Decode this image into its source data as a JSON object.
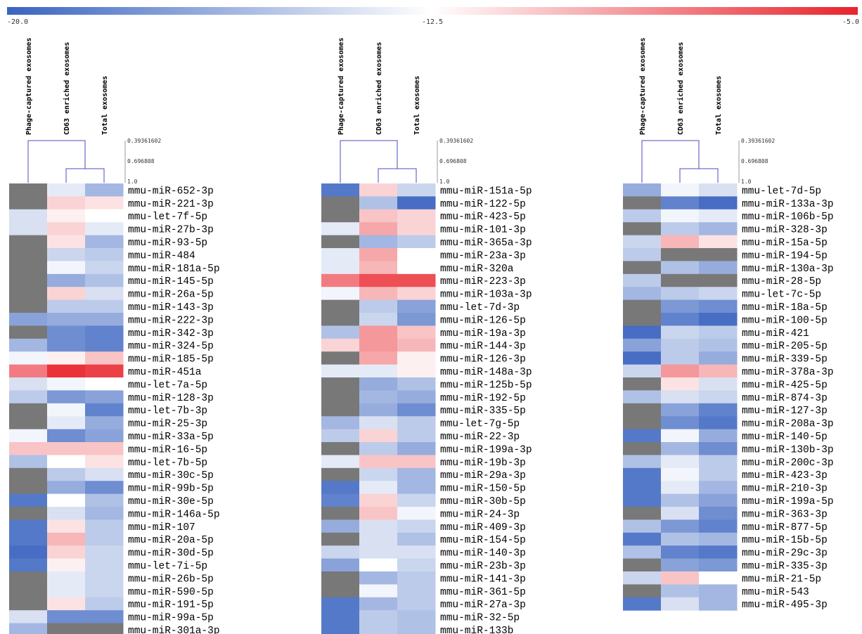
{
  "chart_data": {
    "type": "heatmap",
    "colorbar": {
      "min_label": "-20.0",
      "mid_label": "-12.5",
      "max_label": "-5.0",
      "min": -20.0,
      "mid": -12.5,
      "max": -5.0,
      "low_color": "#3a64c0",
      "mid_color": "#ffffff",
      "high_color": "#e8232b"
    },
    "missing_color": "#787878",
    "columns": [
      "Phage-captured exosomes",
      "CD63 enriched exosomes",
      "Total exosomes"
    ],
    "dendrogram_scale": [
      "0.39361602",
      "0.696808",
      "1.0"
    ],
    "panels": [
      {
        "rows": [
          "mmu-miR-652-3p",
          "mmu-miR-221-3p",
          "mmu-let-7f-5p",
          "mmu-miR-27b-3p",
          "mmu-miR-93-5p",
          "mmu-miR-484",
          "mmu-miR-181a-5p",
          "mmu-miR-145-5p",
          "mmu-miR-26a-5p",
          "mmu-miR-143-3p",
          "mmu-miR-222-3p",
          "mmu-miR-342-3p",
          "mmu-miR-324-5p",
          "mmu-miR-185-5p",
          "mmu-miR-451a",
          "mmu-let-7a-5p",
          "mmu-miR-128-3p",
          "mmu-let-7b-3p",
          "mmu-miR-25-3p",
          "mmu-miR-33a-5p",
          "mmu-miR-16-5p",
          "mmu-let-7b-5p",
          "mmu-miR-30c-5p",
          "mmu-miR-99b-5p",
          "mmu-miR-30e-5p",
          "mmu-miR-146a-5p",
          "mmu-miR-107",
          "mmu-miR-20a-5p",
          "mmu-miR-30d-5p",
          "mmu-let-7i-5p",
          "mmu-miR-26b-5p",
          "mmu-miR-590-5p",
          "mmu-miR-191-5p",
          "mmu-miR-99a-5p",
          "mmu-miR-301a-3p"
        ],
        "values": [
          [
            null,
            -13.5,
            -16.0
          ],
          [
            null,
            -11.0,
            -11.5
          ],
          [
            -14.0,
            -12.0,
            -12.5
          ],
          [
            -14.0,
            -11.0,
            -13.5
          ],
          [
            null,
            -11.5,
            -16.0
          ],
          [
            null,
            -14.5,
            -15.0
          ],
          [
            null,
            -13.0,
            -14.5
          ],
          [
            null,
            -16.5,
            -15.5
          ],
          [
            null,
            -11.0,
            -14.0
          ],
          [
            null,
            -15.0,
            -15.0
          ],
          [
            -17.0,
            -16.5,
            -16.5
          ],
          [
            null,
            -18.0,
            -18.5
          ],
          [
            -16.0,
            -18.0,
            -18.5
          ],
          [
            -13.0,
            -12.0,
            -10.5
          ],
          [
            -8.0,
            -5.5,
            -6.0
          ],
          [
            -14.0,
            -13.0,
            -12.5
          ],
          [
            -15.0,
            -17.5,
            -17.0
          ],
          [
            null,
            -13.0,
            -18.5
          ],
          [
            null,
            -13.5,
            -16.5
          ],
          [
            -13.0,
            -18.0,
            -17.0
          ],
          [
            -10.5,
            -10.5,
            -10.5
          ],
          [
            -15.5,
            -12.5,
            -11.5
          ],
          [
            null,
            -15.0,
            -14.0
          ],
          [
            null,
            -16.5,
            -18.0
          ],
          [
            -19.0,
            -12.5,
            -15.5
          ],
          [
            null,
            -14.0,
            -16.0
          ],
          [
            -19.0,
            -11.5,
            -15.0
          ],
          [
            -19.0,
            -10.0,
            -15.0
          ],
          [
            -19.5,
            -11.0,
            -14.5
          ],
          [
            -19.0,
            -12.0,
            -14.5
          ],
          [
            null,
            -13.5,
            -14.5
          ],
          [
            null,
            -13.5,
            -14.5
          ],
          [
            null,
            -11.5,
            -15.0
          ],
          [
            -14.0,
            -18.0,
            -18.0
          ],
          [
            -16.0,
            null,
            null
          ]
        ]
      },
      {
        "rows": [
          "mmu-miR-151a-5p",
          "mmu-miR-122-5p",
          "mmu-miR-423-5p",
          "mmu-miR-101-3p",
          "mmu-miR-365a-3p",
          "mmu-miR-23a-3p",
          "mmu-miR-320a",
          "mmu-miR-223-3p",
          "mmu-miR-103a-3p",
          "mmu-let-7d-3p",
          "mmu-miR-126-5p",
          "mmu-miR-19a-3p",
          "mmu-miR-144-3p",
          "mmu-miR-126-3p",
          "mmu-miR-148a-3p",
          "mmu-miR-125b-5p",
          "mmu-miR-192-5p",
          "mmu-miR-335-5p",
          "mmu-let-7g-5p",
          "mmu-miR-22-3p",
          "mmu-miR-199a-3p",
          "mmu-miR-19b-3p",
          "mmu-miR-29a-3p",
          "mmu-miR-150-5p",
          "mmu-miR-30b-5p",
          "mmu-miR-24-3p",
          "mmu-miR-409-3p",
          "mmu-miR-154-5p",
          "mmu-miR-140-3p",
          "mmu-miR-23b-3p",
          "mmu-miR-141-3p",
          "mmu-miR-361-5p",
          "mmu-miR-27a-3p",
          "mmu-miR-32-5p",
          "mmu-miR-133b"
        ],
        "values": [
          [
            -19.0,
            -11.0,
            -14.5
          ],
          [
            null,
            -15.5,
            -19.5
          ],
          [
            null,
            -10.5,
            -11.0
          ],
          [
            -13.5,
            -9.5,
            -11.0
          ],
          [
            null,
            -16.0,
            -15.0
          ],
          [
            -13.5,
            -9.5,
            -12.5
          ],
          [
            -13.5,
            -10.0,
            -12.5
          ],
          [
            -8.0,
            -6.5,
            -6.5
          ],
          [
            -13.0,
            -10.0,
            -11.0
          ],
          [
            null,
            -15.0,
            -17.0
          ],
          [
            null,
            -14.5,
            -17.5
          ],
          [
            -15.5,
            -9.0,
            -10.5
          ],
          [
            -11.0,
            -9.0,
            -10.0
          ],
          [
            null,
            -9.5,
            -12.0
          ],
          [
            -13.5,
            -13.5,
            -12.0
          ],
          [
            null,
            -16.5,
            -15.5
          ],
          [
            null,
            -16.0,
            -16.5
          ],
          [
            null,
            -16.5,
            -18.0
          ],
          [
            -16.0,
            -14.0,
            -15.0
          ],
          [
            -15.0,
            -11.0,
            -15.0
          ],
          [
            null,
            -15.0,
            -16.5
          ],
          [
            -13.5,
            -10.5,
            -10.5
          ],
          [
            null,
            -14.5,
            -16.0
          ],
          [
            -19.0,
            -13.5,
            -16.0
          ],
          [
            -18.5,
            -11.0,
            -14.5
          ],
          [
            null,
            -10.5,
            -13.0
          ],
          [
            -16.5,
            -14.0,
            -14.5
          ],
          [
            null,
            -14.0,
            -15.5
          ],
          [
            -14.5,
            -14.0,
            -14.0
          ],
          [
            -17.0,
            -12.5,
            -14.5
          ],
          [
            null,
            -16.0,
            -15.0
          ],
          [
            null,
            -13.0,
            -15.0
          ],
          [
            -19.0,
            -16.0,
            -15.0
          ],
          [
            -19.0,
            -15.0,
            -15.5
          ],
          [
            -19.0,
            -15.0,
            -15.5
          ]
        ]
      },
      {
        "rows": [
          "mmu-let-7d-5p",
          "mmu-miR-133a-3p",
          "mmu-miR-106b-5p",
          "mmu-miR-328-3p",
          "mmu-miR-15a-5p",
          "mmu-miR-194-5p",
          "mmu-miR-130a-3p",
          "mmu-miR-28-5p",
          "mmu-let-7c-5p",
          "mmu-miR-18a-5p",
          "mmu-miR-100-5p",
          "mmu-miR-421",
          "mmu-miR-205-5p",
          "mmu-miR-339-5p",
          "mmu-miR-378a-3p",
          "mmu-miR-425-5p",
          "mmu-miR-874-3p",
          "mmu-miR-127-3p",
          "mmu-miR-208a-3p",
          "mmu-miR-140-5p",
          "mmu-miR-130b-3p",
          "mmu-miR-200c-3p",
          "mmu-miR-423-3p",
          "mmu-miR-210-3p",
          "mmu-miR-199a-5p",
          "mmu-miR-363-3p",
          "mmu-miR-877-5p",
          "mmu-miR-15b-5p",
          "mmu-miR-29c-3p",
          "mmu-miR-335-3p",
          "mmu-miR-21-5p",
          "mmu-miR-543",
          "mmu-miR-495-3p"
        ],
        "values": [
          [
            -16.5,
            -13.0,
            -14.0
          ],
          [
            null,
            -18.5,
            -19.5
          ],
          [
            -15.0,
            -13.0,
            -13.5
          ],
          [
            null,
            -15.0,
            -16.0
          ],
          [
            -14.5,
            -10.0,
            -11.5
          ],
          [
            -15.0,
            null,
            null
          ],
          [
            null,
            -15.5,
            -16.5
          ],
          [
            -15.0,
            null,
            null
          ],
          [
            -16.0,
            -15.0,
            -14.5
          ],
          [
            null,
            -17.5,
            -18.0
          ],
          [
            null,
            -18.5,
            -19.5
          ],
          [
            -19.5,
            -14.5,
            -15.0
          ],
          [
            -17.0,
            -15.0,
            -15.5
          ],
          [
            -19.5,
            -15.0,
            -16.5
          ],
          [
            -14.5,
            -9.0,
            -10.0
          ],
          [
            null,
            -11.5,
            -14.0
          ],
          [
            -15.5,
            -14.0,
            -14.5
          ],
          [
            null,
            -17.0,
            -18.5
          ],
          [
            null,
            -18.0,
            -19.0
          ],
          [
            -19.0,
            -13.0,
            -16.5
          ],
          [
            null,
            -16.0,
            -18.0
          ],
          [
            -15.5,
            -13.5,
            -15.0
          ],
          [
            -19.0,
            -13.0,
            -15.0
          ],
          [
            -19.0,
            -13.5,
            -16.0
          ],
          [
            -19.0,
            -15.5,
            -17.0
          ],
          [
            null,
            -14.0,
            -18.0
          ],
          [
            -15.5,
            -17.5,
            -18.5
          ],
          [
            -19.0,
            -15.5,
            -16.0
          ],
          [
            -15.5,
            -18.5,
            -19.0
          ],
          [
            null,
            -17.0,
            -17.5
          ],
          [
            -14.5,
            -10.5,
            -12.5
          ],
          [
            null,
            -15.5,
            -16.0
          ],
          [
            -19.0,
            -14.0,
            -16.0
          ]
        ]
      }
    ]
  }
}
